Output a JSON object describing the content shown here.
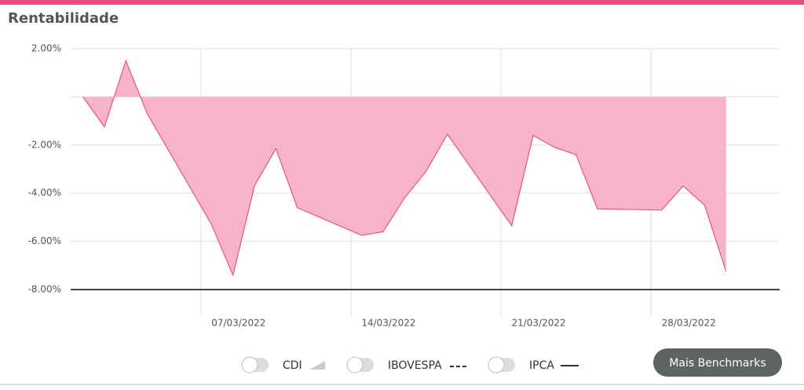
{
  "chart_data": {
    "type": "area",
    "title": "Rentabilidade",
    "x": [
      "01/03/2022",
      "02/03/2022",
      "03/03/2022",
      "04/03/2022",
      "07/03/2022",
      "08/03/2022",
      "09/03/2022",
      "10/03/2022",
      "11/03/2022",
      "14/03/2022",
      "15/03/2022",
      "16/03/2022",
      "17/03/2022",
      "18/03/2022",
      "21/03/2022",
      "22/03/2022",
      "23/03/2022",
      "24/03/2022",
      "25/03/2022",
      "28/03/2022",
      "29/03/2022",
      "30/03/2022",
      "31/03/2022"
    ],
    "series": [
      {
        "name": "Rentabilidade",
        "color": "#e8528a",
        "fill": "#f7b3cc",
        "values": [
          0,
          -1.25,
          1.5,
          -0.7,
          -5.3,
          -7.4,
          -3.7,
          -2.15,
          -4.6,
          -5.75,
          -5.6,
          -4.2,
          -3.1,
          -1.55,
          -5.35,
          -1.6,
          -2.1,
          -2.4,
          -4.65,
          -4.7,
          -3.7,
          -4.5,
          -7.25
        ]
      }
    ],
    "xlim": [
      "01/03/2022",
      "03/04/2022"
    ],
    "xticks": [
      "07/03/2022",
      "14/03/2022",
      "21/03/2022",
      "28/03/2022"
    ],
    "ylim": [
      -8,
      2
    ],
    "yticks": [
      {
        "value": 2,
        "label": "2.00%"
      },
      {
        "value": 0,
        "label": null
      },
      {
        "value": -2,
        "label": "-2.00%"
      },
      {
        "value": -4,
        "label": "-4.00%"
      },
      {
        "value": -6,
        "label": "-6.00%"
      },
      {
        "value": -8,
        "label": "-8.00%"
      }
    ],
    "grid": true
  },
  "benchmarks": [
    {
      "label": "CDI"
    },
    {
      "label": "IBOVESPA"
    },
    {
      "label": "IPCA"
    }
  ],
  "button": {
    "label": "Mais Benchmarks"
  }
}
